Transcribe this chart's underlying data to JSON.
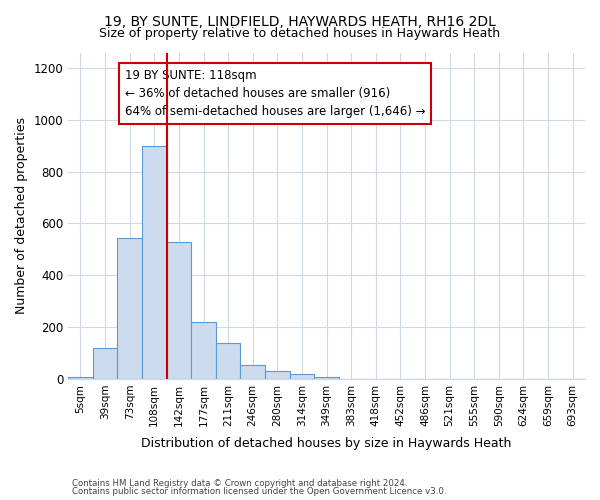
{
  "title_line1": "19, BY SUNTE, LINDFIELD, HAYWARDS HEATH, RH16 2DL",
  "title_line2": "Size of property relative to detached houses in Haywards Heath",
  "xlabel": "Distribution of detached houses by size in Haywards Heath",
  "ylabel": "Number of detached properties",
  "footer_line1": "Contains HM Land Registry data © Crown copyright and database right 2024.",
  "footer_line2": "Contains public sector information licensed under the Open Government Licence v3.0.",
  "bar_labels": [
    "5sqm",
    "39sqm",
    "73sqm",
    "108sqm",
    "142sqm",
    "177sqm",
    "211sqm",
    "246sqm",
    "280sqm",
    "314sqm",
    "349sqm",
    "383sqm",
    "418sqm",
    "452sqm",
    "486sqm",
    "521sqm",
    "555sqm",
    "590sqm",
    "624sqm",
    "659sqm",
    "693sqm"
  ],
  "bar_values": [
    8,
    118,
    545,
    900,
    530,
    220,
    140,
    55,
    32,
    18,
    8,
    0,
    0,
    0,
    0,
    0,
    0,
    0,
    0,
    0,
    0
  ],
  "bar_color": "#ccdcee",
  "bar_edgecolor": "#5b9bd5",
  "ylim": [
    0,
    1260
  ],
  "yticks": [
    0,
    200,
    400,
    600,
    800,
    1000,
    1200
  ],
  "vline_color": "#cc0000",
  "annotation_text": "19 BY SUNTE: 118sqm\n← 36% of detached houses are smaller (916)\n64% of semi-detached houses are larger (1,646) →",
  "annotation_box_color": "white",
  "annotation_box_edgecolor": "#cc0000",
  "bg_color": "#ffffff",
  "grid_color": "#d0d8e8",
  "title1_fontsize": 10,
  "title2_fontsize": 9,
  "ylabel_fontsize": 9,
  "xlabel_fontsize": 9
}
